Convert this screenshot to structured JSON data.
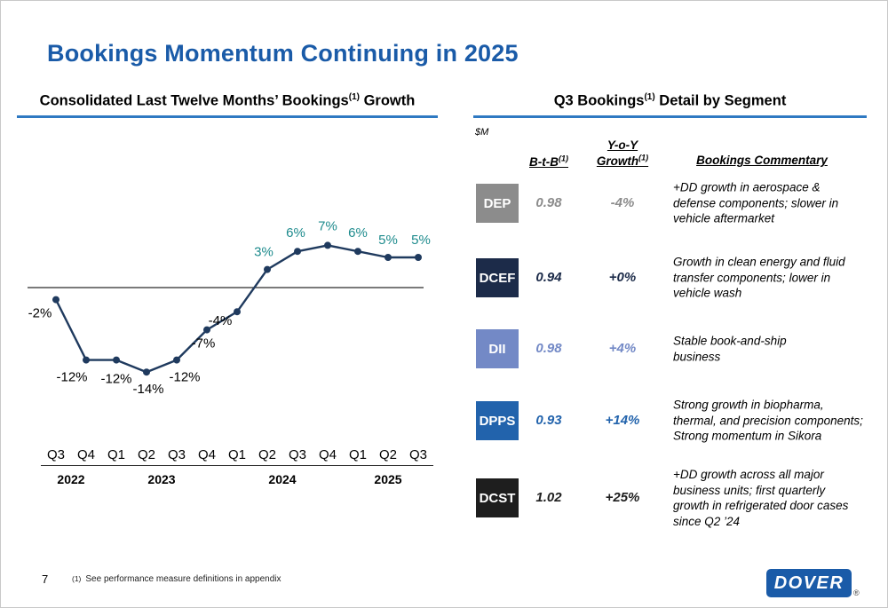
{
  "colors": {
    "title_blue": "#1A5BA8",
    "rule_blue": "#2E79C2",
    "line_navy": "#1F3A5E",
    "positive_teal": "#1E8B8D"
  },
  "slide": {
    "title": "Bookings Momentum Continuing in 2025",
    "page_number": "7",
    "footnote_marker": "(1)",
    "footnote_text": "See performance measure definitions in appendix",
    "logo_text": "DOVER",
    "logo_reg": "®"
  },
  "left": {
    "header_main": "Consolidated Last Twelve Months’ Bookings",
    "header_sup": "(1)",
    "header_tail": " Growth"
  },
  "chart_data": {
    "type": "line",
    "title": "Consolidated Last Twelve Months’ Bookings(1) Growth",
    "x": [
      "Q3",
      "Q4",
      "Q1",
      "Q2",
      "Q3",
      "Q4",
      "Q1",
      "Q2",
      "Q3",
      "Q4",
      "Q1",
      "Q2",
      "Q3"
    ],
    "values": [
      -2,
      -12,
      -12,
      -14,
      -12,
      -7,
      -4,
      3,
      6,
      7,
      6,
      5,
      5
    ],
    "labels": [
      "-2%",
      "-12%",
      "-12%",
      "-14%",
      "-12%",
      "-7%",
      "-4%",
      "3%",
      "6%",
      "7%",
      "6%",
      "5%",
      "5%"
    ],
    "year_groups": [
      {
        "label": "2022",
        "count": 2
      },
      {
        "label": "2023",
        "count": 4
      },
      {
        "label": "2024",
        "count": 4
      },
      {
        "label": "2025",
        "count": 3
      }
    ],
    "ylim": [
      -16,
      9
    ],
    "baseline": 0,
    "grid": false,
    "legend": false,
    "line_color": "#1F3A5E",
    "positive_label_color": "#1E8B8D",
    "negative_label_color": "#000000"
  },
  "right": {
    "header_main": "Q3 Bookings",
    "header_sup": "(1)",
    "header_tail": " Detail by Segment",
    "unit_label": "$M",
    "columns": {
      "btb": "B-t-B",
      "btb_sup": "(1)",
      "yoy_line1": "Y-o-Y",
      "yoy_line2": "Growth",
      "yoy_sup": "(1)",
      "commentary": "Bookings Commentary"
    },
    "segments": [
      {
        "name": "DEP",
        "color": "#8C8C8C",
        "btb": "0.98",
        "yoy": "-4%",
        "commentary": "+DD growth in aerospace &\ndefense components; slower in\nvehicle aftermarket"
      },
      {
        "name": "DCEF",
        "color": "#1C2B49",
        "btb": "0.94",
        "yoy": "+0%",
        "commentary": "Growth in clean energy and fluid\ntransfer components; lower in\nvehicle wash"
      },
      {
        "name": "DII",
        "color": "#7389C6",
        "btb": "0.98",
        "yoy": "+4%",
        "commentary": "Stable book-and-ship\nbusiness"
      },
      {
        "name": "DPPS",
        "color": "#2263AC",
        "btb": "0.93",
        "yoy": "+14%",
        "commentary": "Strong growth in biopharma,\nthermal, and precision components;\nStrong momentum in Sikora"
      },
      {
        "name": "DCST",
        "color": "#1E1E1E",
        "btb": "1.02",
        "yoy": "+25%",
        "commentary": "+DD growth across all major\nbusiness units; first quarterly\ngrowth in refrigerated door cases\nsince Q2 ’24"
      }
    ]
  }
}
